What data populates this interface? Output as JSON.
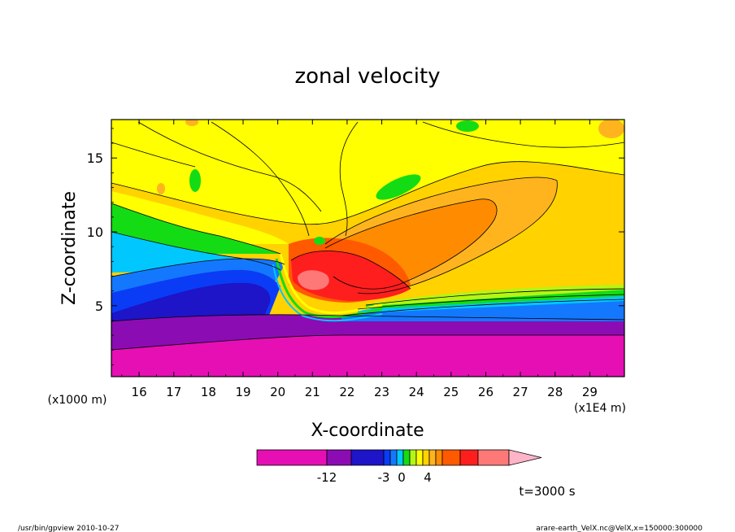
{
  "chart_data": {
    "type": "heatmap",
    "title": "zonal velocity",
    "xlabel": "X-coordinate",
    "ylabel": "Z-coordinate",
    "x_unit_label": "(x1E4 m)",
    "y_unit_label": "(x1000 m)",
    "xlim": [
      15.2,
      30.0
    ],
    "ylim": [
      0.2,
      17.6
    ],
    "x_ticks": [
      "16",
      "17",
      "18",
      "19",
      "20",
      "21",
      "22",
      "23",
      "24",
      "25",
      "26",
      "27",
      "28",
      "29"
    ],
    "y_ticks": [
      "5",
      "10",
      "15"
    ],
    "grid": false,
    "colorbar": {
      "orientation": "horizontal",
      "extend": "max",
      "colors": [
        "#e60fb4",
        "#8c0cb4",
        "#1e14c8",
        "#0a3cf5",
        "#1478ff",
        "#00c8ff",
        "#14dc14",
        "#b4f514",
        "#ffff00",
        "#ffd200",
        "#ffb41e",
        "#ff8c00",
        "#ff5a00",
        "#ff1e1e",
        "#ff7878",
        "#ffb4c8"
      ],
      "tick_labels": [
        "-12",
        "-3",
        "0",
        "4"
      ]
    },
    "annotation": "t=3000 s",
    "footer_left": "/usr/bin/gpview  2010-10-27",
    "footer_right": "arare-earth_VelX.nc@VelX,x=150000:300000"
  }
}
